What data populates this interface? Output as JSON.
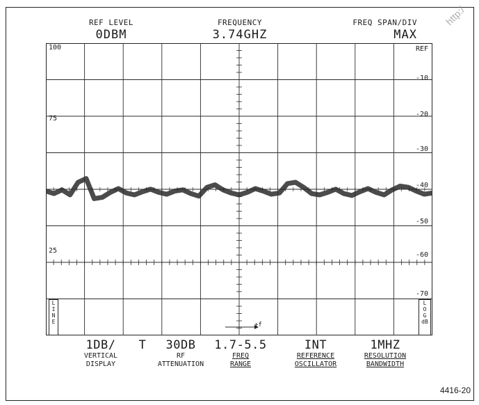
{
  "header": {
    "ref_level": {
      "label": "REF LEVEL",
      "value": "0DBM"
    },
    "frequency": {
      "label": "FREQUENCY",
      "value": "3.74GHZ"
    },
    "span": {
      "label": "FREQ SPAN/DIV",
      "value": "MAX"
    }
  },
  "left_scale": [
    "100",
    "75",
    "25"
  ],
  "right_scale": [
    "REF",
    "-10",
    "-20",
    "-30",
    "-40",
    "-50",
    "-60",
    "-70"
  ],
  "left_box": "L\nI\nN\nE",
  "right_box": "L\nO\nG\ndB",
  "marker_label": "+f",
  "settings": [
    {
      "value": "1DB/",
      "name": "VERTICAL\nDISPLAY",
      "underline": false
    },
    {
      "value": "T",
      "name": "",
      "underline": false
    },
    {
      "value": "30DB",
      "name": "RF\nATTENUATION",
      "underline": false
    },
    {
      "value": "1.7-5.5",
      "name": "FREQ\nRANGE",
      "underline": true
    },
    {
      "value": "INT",
      "name": "REFERENCE\nOSCILLATOR",
      "underline": true
    },
    {
      "value": "1MHZ",
      "name": "RESOLUTION\nBANDWIDTH",
      "underline": true
    }
  ],
  "figure_number": "4416-20",
  "watermark": "http:/",
  "trace_level_db": -40
}
